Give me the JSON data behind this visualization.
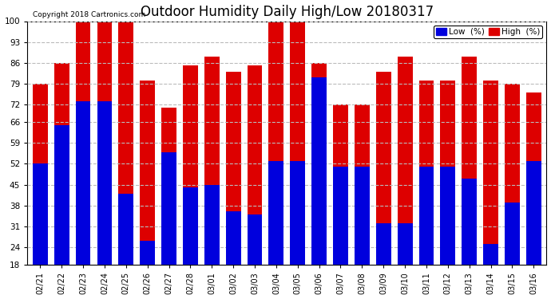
{
  "title": "Outdoor Humidity Daily High/Low 20180317",
  "copyright": "Copyright 2018 Cartronics.com",
  "legend_low": "Low  (%)",
  "legend_high": "High  (%)",
  "categories": [
    "02/21",
    "02/22",
    "02/23",
    "02/24",
    "02/25",
    "02/26",
    "02/27",
    "02/28",
    "03/01",
    "03/02",
    "03/03",
    "03/04",
    "03/05",
    "03/06",
    "03/07",
    "03/08",
    "03/09",
    "03/10",
    "03/11",
    "03/12",
    "03/13",
    "03/14",
    "03/15",
    "03/16"
  ],
  "high_values": [
    79,
    86,
    100,
    100,
    100,
    80,
    71,
    85,
    88,
    83,
    85,
    100,
    100,
    86,
    72,
    72,
    83,
    88,
    80,
    80,
    88,
    80,
    79,
    76
  ],
  "low_values": [
    52,
    65,
    73,
    73,
    42,
    26,
    56,
    44,
    45,
    36,
    35,
    53,
    53,
    81,
    51,
    51,
    32,
    32,
    51,
    51,
    47,
    25,
    39,
    53
  ],
  "ylim": [
    18,
    100
  ],
  "yticks": [
    18,
    24,
    31,
    38,
    45,
    52,
    59,
    66,
    72,
    79,
    86,
    93,
    100
  ],
  "bar_width": 0.7,
  "low_color": "#0000dd",
  "high_color": "#dd0000",
  "bg_color": "#ffffff",
  "grid_color": "#bbbbbb",
  "title_fontsize": 12,
  "tick_fontsize": 7.5,
  "legend_fontsize": 7.5
}
